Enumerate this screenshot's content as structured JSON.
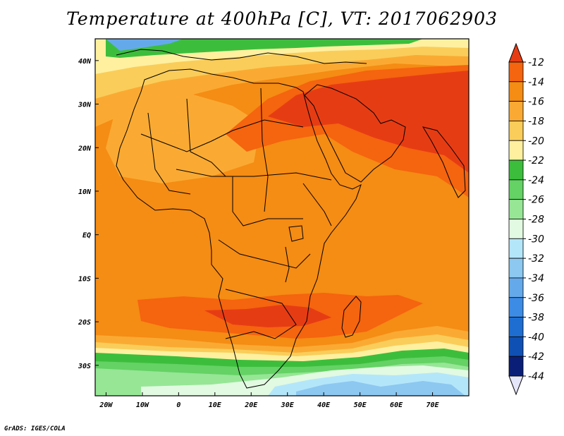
{
  "title": "Temperature at 400hPa [C], VT: 2017062903",
  "footer": "GrADS: IGES/COLA",
  "map": {
    "lon_range": [
      -23,
      80
    ],
    "lat_range": [
      -37,
      45
    ],
    "x_ticks": [
      {
        "value": -20,
        "label": "20W"
      },
      {
        "value": -10,
        "label": "10W"
      },
      {
        "value": 0,
        "label": "0"
      },
      {
        "value": 10,
        "label": "10E"
      },
      {
        "value": 20,
        "label": "20E"
      },
      {
        "value": 30,
        "label": "30E"
      },
      {
        "value": 40,
        "label": "40E"
      },
      {
        "value": 50,
        "label": "50E"
      },
      {
        "value": 60,
        "label": "60E"
      },
      {
        "value": 70,
        "label": "70E"
      }
    ],
    "y_ticks": [
      {
        "value": 40,
        "label": "40N"
      },
      {
        "value": 30,
        "label": "30N"
      },
      {
        "value": 20,
        "label": "20N"
      },
      {
        "value": 10,
        "label": "10N"
      },
      {
        "value": 0,
        "label": "EQ"
      },
      {
        "value": -10,
        "label": "10S"
      },
      {
        "value": -20,
        "label": "20S"
      },
      {
        "value": -30,
        "label": "30S"
      }
    ]
  },
  "colorbar": {
    "labels": [
      "-12",
      "-14",
      "-16",
      "-18",
      "-20",
      "-22",
      "-24",
      "-26",
      "-28",
      "-30",
      "-32",
      "-34",
      "-36",
      "-38",
      "-40",
      "-42",
      "-44"
    ],
    "colors": [
      "#e63c14",
      "#f5640f",
      "#f58c14",
      "#faaa32",
      "#facd5a",
      "#fff0a0",
      "#3cbe3c",
      "#64d264",
      "#96e696",
      "#e1fae1",
      "#b4e6fa",
      "#8cc8f0",
      "#64aaeb",
      "#3c8ce6",
      "#1e6ed2",
      "#0f50b4",
      "#0a1e78"
    ],
    "top_arrow_color": "#e63c14",
    "bottom_arrow_color": "#e6e6fa"
  },
  "field": {
    "base_color": "#f58c14",
    "regions": [
      {
        "name": "warm-band-north",
        "color": "#f5640f"
      },
      {
        "name": "warm-core-arabia-india",
        "color": "#e63c14"
      },
      {
        "name": "warm-band-south",
        "color": "#f5640f"
      },
      {
        "name": "sahara-cool-patch",
        "color": "#faaa32"
      },
      {
        "name": "cool-north-edge",
        "color": "#facd5a"
      },
      {
        "name": "cold-band-south",
        "color": "#3cbe3c"
      },
      {
        "name": "cold-south-core",
        "color": "#b4e6fa"
      },
      {
        "name": "cold-north-corner",
        "color": "#64aaeb"
      }
    ]
  }
}
